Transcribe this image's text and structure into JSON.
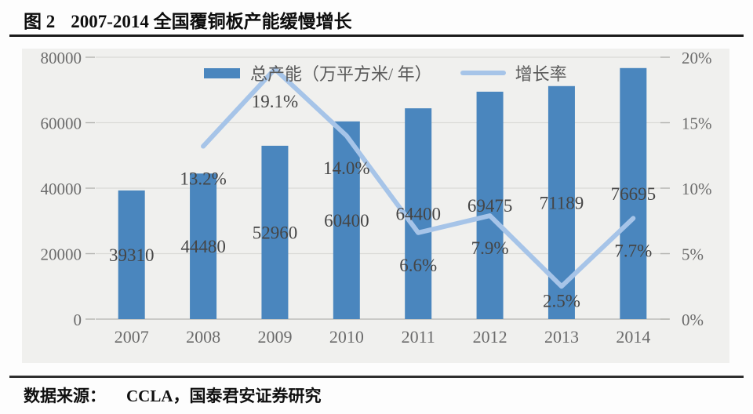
{
  "figure": {
    "label": "图 2",
    "title": "2007-2014 全国覆铜板产能缓慢增长"
  },
  "legend": {
    "bar_label": "总产能（万平方米/ 年）",
    "line_label": "增长率"
  },
  "source": {
    "prefix": "数据来源：",
    "text": "CCLA，国泰君安证券研究"
  },
  "colors": {
    "bar": "#4a86be",
    "line": "#a6c4e8",
    "plot_bg": "#f0f0ee",
    "gridline": "#d9d9d6",
    "axis_line": "#bdbdba",
    "tick_mark": "#b3b3b0",
    "axis_text": "#6b6b6b",
    "data_label": "#454545"
  },
  "chart_data": {
    "type": "bar+line",
    "title": "2007-2014 全国覆铜板产能缓慢增长",
    "categories": [
      "2007",
      "2008",
      "2009",
      "2010",
      "2011",
      "2012",
      "2013",
      "2014"
    ],
    "series": [
      {
        "name": "总产能（万平方米/ 年）",
        "type": "bar",
        "axis": "left",
        "values": [
          39310,
          44480,
          52960,
          60400,
          64400,
          69475,
          71189,
          76695
        ],
        "labels": [
          "39310",
          "44480",
          "52960",
          "60400",
          "64400",
          "69475",
          "71189",
          "76695"
        ]
      },
      {
        "name": "增长率",
        "type": "line",
        "axis": "right",
        "x_start_index": 1,
        "values_pct": [
          13.2,
          19.1,
          14.0,
          6.6,
          7.9,
          2.5,
          7.7
        ],
        "labels": [
          "13.2%",
          "19.1%",
          "14.0%",
          "6.6%",
          "7.9%",
          "2.5%",
          "7.7%"
        ],
        "label_dy": [
          41,
          41,
          41,
          41,
          41,
          18,
          41
        ]
      }
    ],
    "left_axis": {
      "min": 0,
      "max": 80000,
      "tick_values": [
        0,
        20000,
        40000,
        60000,
        80000
      ],
      "ticks": [
        "0",
        "20000",
        "40000",
        "60000",
        "80000"
      ]
    },
    "right_axis": {
      "min": 0,
      "max": 20,
      "tick_values": [
        0,
        5,
        10,
        15,
        20
      ],
      "ticks": [
        "0%",
        "5%",
        "10%",
        "15%",
        "20%"
      ]
    },
    "grid": true,
    "legend_position": "top-center",
    "xlabel": "",
    "ylabel": ""
  }
}
